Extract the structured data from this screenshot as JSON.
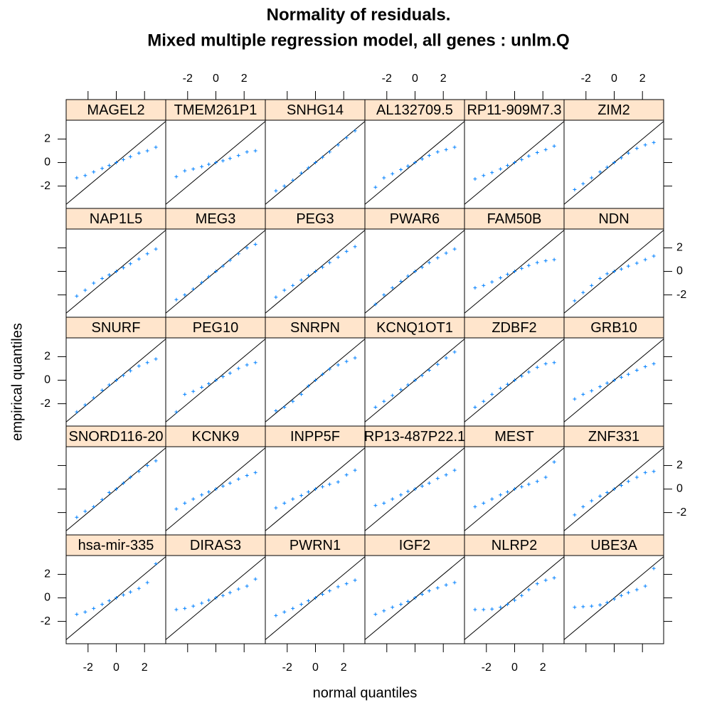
{
  "chart_data": {
    "type": "qq",
    "title": "Normality of residuals.",
    "subtitle": "Mixed multiple regression model, all genes : unlm.Q",
    "xlabel": "normal quantiles",
    "ylabel": "empirical quantiles",
    "xlim": [
      -3.55,
      3.5
    ],
    "ylim": [
      -3.9,
      3.6
    ],
    "xticks": [
      -2,
      0,
      2
    ],
    "yticks": [
      -2,
      0,
      2
    ],
    "color": "#0080ff",
    "reference_line": true,
    "x": [
      -2.8,
      -2.2,
      -1.6,
      -1,
      -0.5,
      0,
      0.5,
      1,
      1.6,
      2.2,
      2.8
    ],
    "panels": [
      {
        "name": "MAGEL2",
        "values": [
          -1.3,
          -1.1,
          -0.8,
          -0.5,
          -0.25,
          0,
          0.25,
          0.5,
          0.8,
          1.0,
          1.3
        ]
      },
      {
        "name": "TMEM261P1",
        "values": [
          -1.2,
          -0.7,
          -0.55,
          -0.35,
          -0.15,
          0,
          0.15,
          0.35,
          0.6,
          0.9,
          1.0
        ]
      },
      {
        "name": "SNHG14",
        "values": [
          -2.4,
          -2.0,
          -1.5,
          -0.9,
          -0.45,
          0,
          0.45,
          0.9,
          1.5,
          2.1,
          2.7
        ]
      },
      {
        "name": "AL132709.5",
        "values": [
          -2.1,
          -1.3,
          -0.95,
          -0.6,
          -0.3,
          0,
          0.3,
          0.6,
          0.9,
          1.1,
          1.3
        ]
      },
      {
        "name": "RP11-909M7.3",
        "values": [
          -1.4,
          -1.1,
          -0.85,
          -0.55,
          -0.25,
          0,
          0.25,
          0.55,
          0.85,
          1.1,
          1.4
        ]
      },
      {
        "name": "ZIM2",
        "values": [
          -2.3,
          -1.8,
          -1.3,
          -0.8,
          -0.4,
          0,
          0.4,
          0.8,
          1.2,
          1.5,
          1.7
        ]
      },
      {
        "name": "NAP1L5",
        "values": [
          -2.1,
          -1.6,
          -1.0,
          -0.6,
          -0.3,
          0,
          0.3,
          0.65,
          1.05,
          1.5,
          1.9
        ]
      },
      {
        "name": "MEG3",
        "values": [
          -2.4,
          -2.0,
          -1.5,
          -0.95,
          -0.45,
          0,
          0.45,
          0.95,
          1.5,
          2.0,
          2.3
        ]
      },
      {
        "name": "PEG3",
        "values": [
          -2.2,
          -1.6,
          -1.2,
          -0.75,
          -0.35,
          0,
          0.35,
          0.75,
          1.2,
          1.7,
          2.1
        ]
      },
      {
        "name": "PWAR6",
        "values": [
          -2.8,
          -2.0,
          -1.4,
          -0.85,
          -0.4,
          0,
          0.35,
          0.75,
          1.15,
          1.55,
          1.9
        ]
      },
      {
        "name": "FAM50B",
        "values": [
          -1.4,
          -1.2,
          -0.9,
          -0.55,
          -0.25,
          0,
          0.25,
          0.5,
          0.75,
          0.9,
          1.0
        ]
      },
      {
        "name": "NDN",
        "values": [
          -2.5,
          -1.8,
          -1.2,
          -0.6,
          -0.2,
          0,
          0.2,
          0.45,
          0.7,
          1.0,
          1.3
        ]
      },
      {
        "name": "SNURF",
        "values": [
          -2.7,
          -2.1,
          -1.5,
          -0.85,
          -0.4,
          0,
          0.4,
          0.8,
          1.2,
          1.5,
          1.8
        ]
      },
      {
        "name": "PEG10",
        "values": [
          -2.7,
          -1.2,
          -0.95,
          -0.6,
          -0.3,
          0,
          0.3,
          0.6,
          1.0,
          1.3,
          1.5
        ]
      },
      {
        "name": "SNRPN",
        "values": [
          -2.6,
          -2.3,
          -1.8,
          -1.2,
          -0.5,
          0,
          0.5,
          0.95,
          1.3,
          1.6,
          1.9
        ]
      },
      {
        "name": "KCNQ1OT1",
        "values": [
          -2.3,
          -1.8,
          -1.3,
          -0.8,
          -0.4,
          0,
          0.4,
          0.85,
          1.35,
          1.9,
          2.4
        ]
      },
      {
        "name": "ZDBF2",
        "values": [
          -2.3,
          -1.8,
          -1.2,
          -0.7,
          -0.35,
          0,
          0.35,
          0.7,
          1.1,
          1.4,
          1.5
        ]
      },
      {
        "name": "GRB10",
        "values": [
          -1.6,
          -1.2,
          -0.9,
          -0.55,
          -0.25,
          0,
          0.25,
          0.5,
          0.85,
          1.15,
          1.4
        ]
      },
      {
        "name": "SNORD116-20",
        "values": [
          -2.4,
          -1.9,
          -1.5,
          -0.9,
          -0.3,
          0,
          0.5,
          1.0,
          1.5,
          2.0,
          2.4
        ]
      },
      {
        "name": "KCNK9",
        "values": [
          -1.7,
          -1.2,
          -0.85,
          -0.5,
          -0.25,
          0,
          0.25,
          0.5,
          0.85,
          1.15,
          1.4
        ]
      },
      {
        "name": "INPP5F",
        "values": [
          -1.6,
          -1.2,
          -0.85,
          -0.55,
          -0.25,
          0,
          0.2,
          0.4,
          0.6,
          1.2,
          1.6
        ]
      },
      {
        "name": "RP13-487P22.1",
        "values": [
          -1.4,
          -1.2,
          -0.85,
          -0.5,
          -0.2,
          0,
          0.25,
          0.5,
          0.9,
          1.2,
          1.6
        ]
      },
      {
        "name": "MEST",
        "values": [
          -1.5,
          -1.2,
          -0.85,
          -0.5,
          -0.25,
          0,
          0.2,
          0.4,
          0.65,
          1.0,
          2.3
        ]
      },
      {
        "name": "ZNF331",
        "values": [
          -2.2,
          -1.5,
          -1.0,
          -0.6,
          -0.3,
          0,
          0.3,
          0.65,
          1.0,
          1.4,
          1.5
        ]
      },
      {
        "name": "hsa-mir-335",
        "values": [
          -1.4,
          -1.2,
          -0.9,
          -0.55,
          -0.25,
          0,
          0.25,
          0.5,
          0.8,
          1.3,
          2.9
        ]
      },
      {
        "name": "DIRAS3",
        "values": [
          -1.0,
          -0.9,
          -0.7,
          -0.45,
          -0.2,
          0,
          0.2,
          0.45,
          0.75,
          1.0,
          1.6
        ]
      },
      {
        "name": "PWRN1",
        "values": [
          -1.5,
          -1.2,
          -0.9,
          -0.55,
          -0.25,
          0,
          0.3,
          0.6,
          0.95,
          1.2,
          1.5
        ]
      },
      {
        "name": "IGF2",
        "values": [
          -1.4,
          -1.1,
          -0.8,
          -0.55,
          -0.3,
          0,
          0.3,
          0.6,
          0.85,
          1.1,
          1.3
        ]
      },
      {
        "name": "NLRP2",
        "values": [
          -1.0,
          -1.0,
          -0.95,
          -0.8,
          -0.55,
          -0.2,
          0.2,
          0.7,
          1.2,
          1.5,
          1.7
        ]
      },
      {
        "name": "UBE3A",
        "values": [
          -0.8,
          -0.75,
          -0.7,
          -0.6,
          -0.4,
          -0.1,
          0.2,
          0.45,
          0.7,
          1.0,
          2.5
        ]
      }
    ]
  }
}
